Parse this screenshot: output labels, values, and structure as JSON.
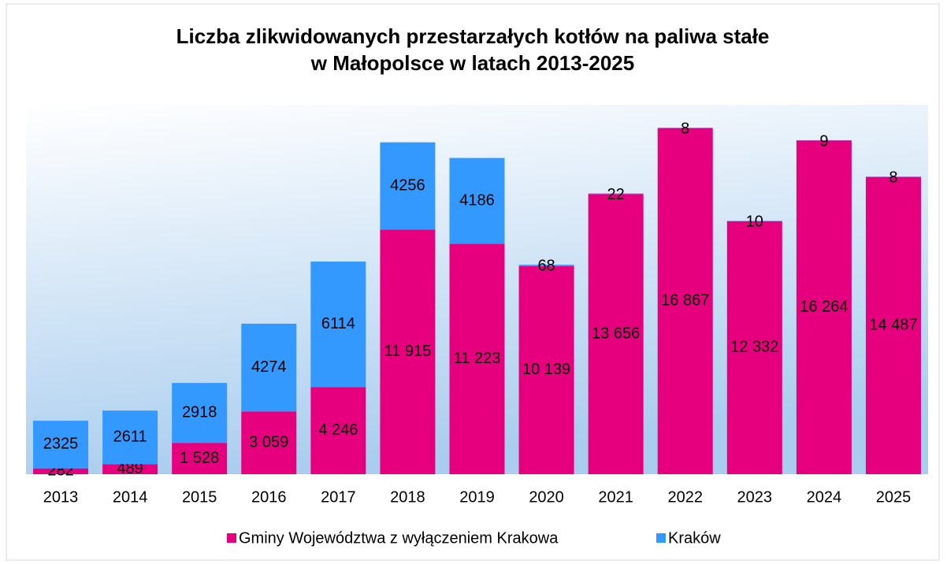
{
  "chart_data": {
    "type": "bar",
    "stacked": true,
    "title": "Liczba zlikwidowanych przestarzałych kotłów na paliwa stałe",
    "subtitle": "w Małopolsce w latach 2013-2025",
    "categories": [
      "2013",
      "2014",
      "2015",
      "2016",
      "2017",
      "2018",
      "2019",
      "2020",
      "2021",
      "2022",
      "2023",
      "2024",
      "2025"
    ],
    "series": [
      {
        "name": "Gminy Województwa z wyłączeniem Krakowa",
        "color": "#e6007e",
        "values": [
          282,
          489,
          1528,
          3059,
          4246,
          11915,
          11223,
          10139,
          13656,
          16867,
          12332,
          16264,
          14487
        ],
        "value_labels": [
          "282",
          "489",
          "1 528",
          "3 059",
          "4 246",
          "11 915",
          "11 223",
          "10 139",
          "13 656",
          "16 867",
          "12 332",
          "16 264",
          "14 487"
        ]
      },
      {
        "name": "Kraków",
        "color": "#3399ff",
        "values": [
          2325,
          2611,
          2918,
          4274,
          6114,
          4256,
          4186,
          68,
          22,
          8,
          10,
          9,
          8
        ]
      }
    ],
    "ylim": [
      0,
      18000
    ],
    "legend": "bottom"
  }
}
